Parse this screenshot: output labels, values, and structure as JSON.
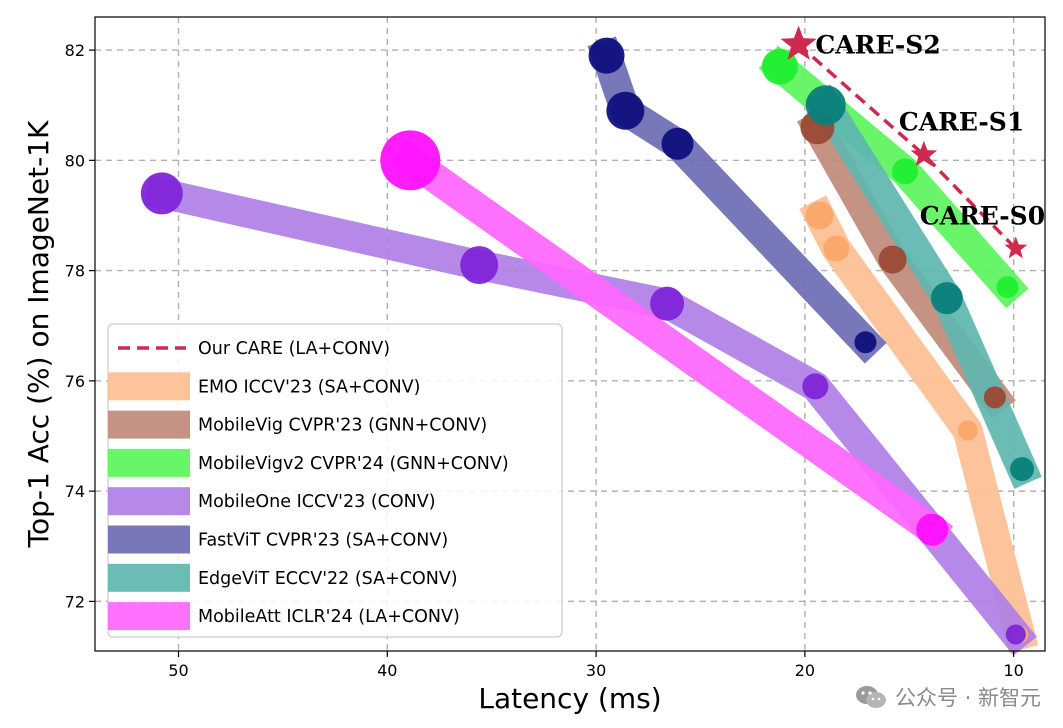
{
  "chart_data": {
    "type": "scatter",
    "xlabel": "Latency (ms)",
    "ylabel": "Top-1 Acc (%) on ImageNet-1K",
    "xlim": [
      54,
      8.5
    ],
    "ylim": [
      71.1,
      82.6
    ],
    "x_reversed": true,
    "x_ticks": [
      50,
      40,
      30,
      20,
      10
    ],
    "y_ticks": [
      72,
      74,
      76,
      78,
      80,
      82
    ],
    "grid": true,
    "legend_position": "bottom-left",
    "series": [
      {
        "name": "Our CARE (LA+CONV)",
        "style": "dashed-star",
        "color": "#cc2a4e",
        "x": [
          20.3,
          14.3,
          9.9
        ],
        "y": [
          82.1,
          80.1,
          78.4
        ],
        "sizes": [
          1,
          1,
          1
        ]
      },
      {
        "name": "EMO ICCV'23 (SA+CONV)",
        "style": "band",
        "color": "#fdbf92",
        "dot": "#fba76a",
        "x": [
          19.3,
          18.5,
          12.2,
          9.7
        ],
        "y": [
          79.0,
          78.4,
          75.1,
          71.4
        ],
        "sizes": [
          28,
          26,
          20,
          17
        ]
      },
      {
        "name": "MobileVig CVPR'23 (GNN+CONV)",
        "style": "band",
        "color": "#bf8a7a",
        "dot": "#9a4a35",
        "x": [
          19.4,
          15.8,
          10.9
        ],
        "y": [
          80.6,
          78.2,
          75.7
        ],
        "sizes": [
          34,
          28,
          22
        ]
      },
      {
        "name": "MobileVigv2 CVPR'24 (GNN+CONV)",
        "style": "band",
        "color": "#5cf45c",
        "dot": "#20ee30",
        "x": [
          21.2,
          15.2,
          10.3
        ],
        "y": [
          81.7,
          79.8,
          77.7
        ],
        "sizes": [
          36,
          26,
          22
        ]
      },
      {
        "name": "MobileOne ICCV'23 (CONV)",
        "style": "band",
        "color": "#b07fe6",
        "dot": "#8025d9",
        "x": [
          50.8,
          35.6,
          26.6,
          19.5,
          9.9
        ],
        "y": [
          79.4,
          78.1,
          77.4,
          75.9,
          71.4
        ],
        "sizes": [
          42,
          38,
          34,
          26,
          20
        ]
      },
      {
        "name": "FastViT CVPR'23 (SA+CONV)",
        "style": "band",
        "color": "#6b6bb3",
        "dot": "#10107e",
        "x": [
          29.5,
          28.6,
          26.1,
          17.1
        ],
        "y": [
          81.9,
          80.9,
          80.3,
          76.7
        ],
        "sizes": [
          36,
          38,
          32,
          22
        ]
      },
      {
        "name": "EdgeViT ECCV'22 (SA+CONV)",
        "style": "band",
        "color": "#5fb6b0",
        "dot": "#0a7f7a",
        "x": [
          19.0,
          13.2,
          9.6
        ],
        "y": [
          81.0,
          77.5,
          74.4
        ],
        "sizes": [
          40,
          32,
          24
        ]
      },
      {
        "name": "MobileAtt ICLR'24 (LA+CONV)",
        "style": "band",
        "color": "#ff66ff",
        "dot": "#ff10ff",
        "x": [
          38.9,
          13.9
        ],
        "y": [
          80.0,
          73.3
        ],
        "sizes": [
          60,
          32
        ]
      }
    ],
    "annotations": [
      {
        "text": "CARE-S2",
        "x": 19.5,
        "y": 82.1
      },
      {
        "text": "CARE-S1",
        "x": 15.5,
        "y": 80.7
      },
      {
        "text": "CARE-S0",
        "x": 14.5,
        "y": 79.0
      }
    ]
  },
  "watermark": {
    "text": "公众号 · 新智元"
  }
}
